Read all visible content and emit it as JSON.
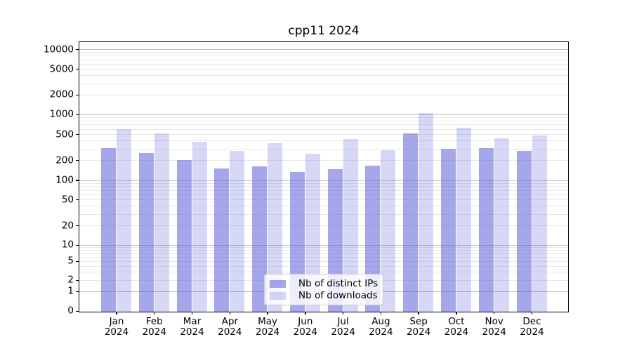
{
  "title": "cpp11 2024",
  "legend": {
    "items": [
      {
        "label": "Nb of distinct IPs",
        "swatch": "dark"
      },
      {
        "label": "Nb of downloads",
        "swatch": "light"
      }
    ]
  },
  "colors": {
    "bar_dark": "rgba(102,102,221,0.58)",
    "bar_light": "rgba(102,102,221,0.26)",
    "grid_major": "#bcbcbc",
    "grid_minor": "#e8e8e8",
    "axis": "#000000"
  },
  "chart_data": {
    "type": "bar",
    "title": "cpp11 2024",
    "categories": [
      "Jan 2024",
      "Feb 2024",
      "Mar 2024",
      "Apr 2024",
      "May 2024",
      "Jun 2024",
      "Jul 2024",
      "Aug 2024",
      "Sep 2024",
      "Oct 2024",
      "Nov 2024",
      "Dec 2024"
    ],
    "x_month_labels": [
      "Jan",
      "Feb",
      "Mar",
      "Apr",
      "May",
      "Jun",
      "Jul",
      "Aug",
      "Sep",
      "Oct",
      "Nov",
      "Dec"
    ],
    "x_year_label": "2024",
    "series": [
      {
        "name": "Nb of distinct IPs",
        "values": [
          315,
          265,
          205,
          155,
          165,
          135,
          152,
          170,
          530,
          310,
          318,
          288
        ]
      },
      {
        "name": "Nb of downloads",
        "values": [
          610,
          525,
          395,
          285,
          375,
          260,
          430,
          295,
          1085,
          650,
          445,
          495
        ]
      }
    ],
    "ylabel": "",
    "xlabel": "",
    "yscale": "symlog",
    "ytick_labels": [
      0,
      1,
      2,
      5,
      10,
      20,
      50,
      100,
      200,
      500,
      1000,
      2000,
      5000,
      10000
    ],
    "ylim": [
      0,
      12000
    ],
    "grid": true,
    "legend_position": "lower center"
  }
}
